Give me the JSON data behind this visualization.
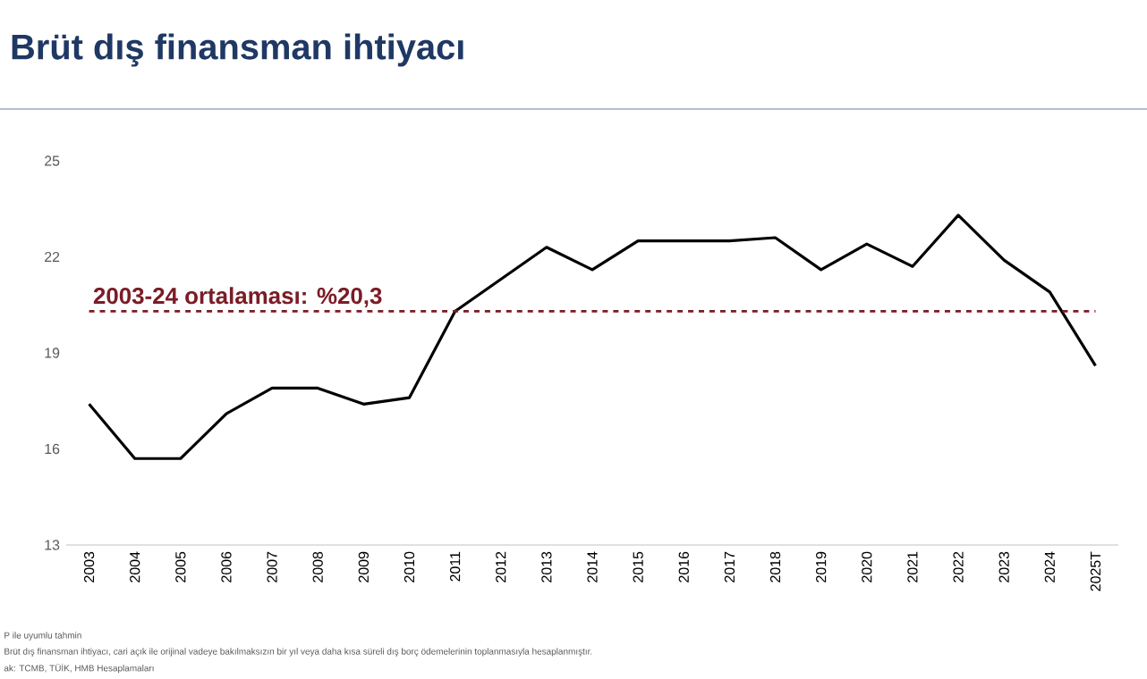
{
  "chart_data": {
    "type": "line",
    "title": "Brüt dış finansman ihtiyacı",
    "categories": [
      "2003",
      "2004",
      "2005",
      "2006",
      "2007",
      "2008",
      "2009",
      "2010",
      "2011",
      "2012",
      "2013",
      "2014",
      "2015",
      "2016",
      "2017",
      "2018",
      "2019",
      "2020",
      "2021",
      "2022",
      "2023",
      "2024",
      "2025T"
    ],
    "series": [
      {
        "color": "#000000",
        "values": [
          17.4,
          15.7,
          15.7,
          17.1,
          17.9,
          17.9,
          17.4,
          17.6,
          20.3,
          21.3,
          22.3,
          21.6,
          22.5,
          22.5,
          22.5,
          22.6,
          21.6,
          22.4,
          21.7,
          23.3,
          21.9,
          20.9,
          18.6
        ]
      }
    ],
    "ylim": [
      13,
      25
    ],
    "yticks": [
      13,
      16,
      19,
      22,
      25
    ],
    "grid": false,
    "marker": "none",
    "line_style": "solid",
    "ref_lines": [
      {
        "axis": "y",
        "value": 20.3,
        "label": "2003-24 ortalaması: %20,3",
        "color": "#7b1c26",
        "line_style": "dashed"
      }
    ],
    "annotations": [
      "P ile uyumlu tahmin",
      "Brüt dış finansman ihtiyacı, cari açık ile orijinal vadeye bakılmaksızın bir yıl veya daha kısa süreli dış borç ödemelerinin toplanmasıyla hesaplanmıştır.",
      "ak: TCMB, TÜİK, HMB Hesaplamaları"
    ]
  }
}
